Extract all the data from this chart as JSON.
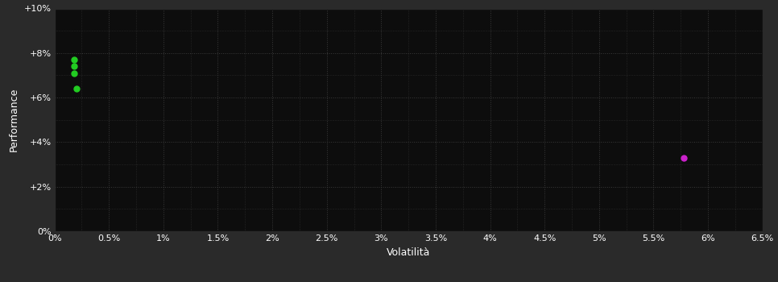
{
  "background_color": "#1a1a1a",
  "plot_bg_color": "#0d0d0d",
  "outer_bg_color": "#2a2a2a",
  "grid_color": "#3a3a3a",
  "text_color": "#ffffff",
  "xlabel": "Volatilità",
  "ylabel": "Performance",
  "xlim": [
    0,
    0.065
  ],
  "ylim": [
    0,
    0.1
  ],
  "x_ticks": [
    0.0,
    0.005,
    0.01,
    0.015,
    0.02,
    0.025,
    0.03,
    0.035,
    0.04,
    0.045,
    0.05,
    0.055,
    0.06,
    0.065
  ],
  "y_ticks": [
    0.0,
    0.02,
    0.04,
    0.06,
    0.08,
    0.1
  ],
  "green_points": [
    [
      0.0018,
      0.077
    ],
    [
      0.0018,
      0.074
    ],
    [
      0.0018,
      0.071
    ],
    [
      0.002,
      0.064
    ]
  ],
  "magenta_points": [
    [
      0.0578,
      0.033
    ]
  ],
  "point_size": 25,
  "green_color": "#22cc22",
  "magenta_color": "#cc22cc"
}
